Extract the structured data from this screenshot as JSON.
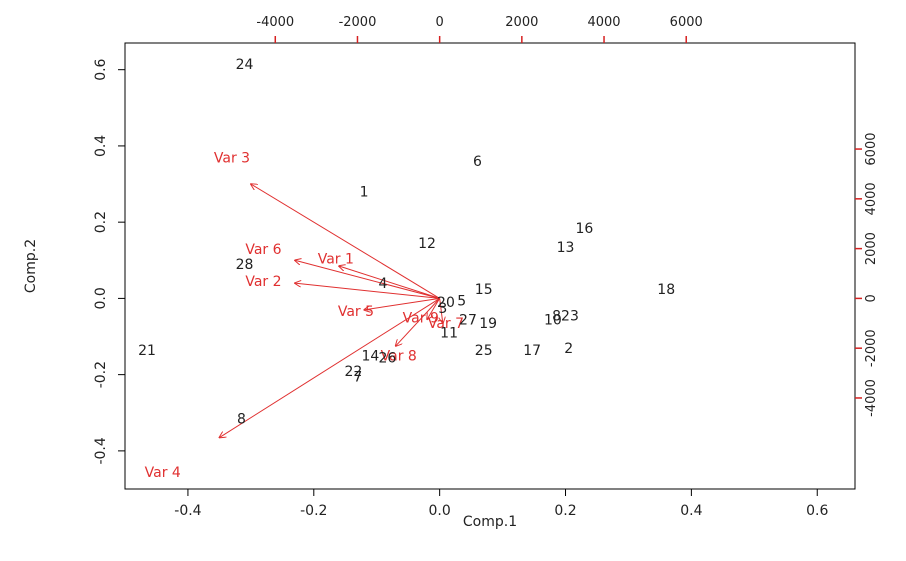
{
  "chart_data": {
    "type": "scatter",
    "subtype": "biplot",
    "xlabel": "Comp.1",
    "ylabel": "Comp.2",
    "xlim": [
      -0.5,
      0.66
    ],
    "ylim": [
      -0.5,
      0.67
    ],
    "xticks": [
      "-0.4",
      "-0.2",
      "0.0",
      "0.2",
      "0.4",
      "0.6"
    ],
    "xtick_values": [
      -0.4,
      -0.2,
      0.0,
      0.2,
      0.4,
      0.6
    ],
    "yticks": [
      "-0.4",
      "-0.2",
      "0.0",
      "0.2",
      "0.4",
      "0.6"
    ],
    "ytick_values": [
      -0.4,
      -0.2,
      0.0,
      0.2,
      0.4,
      0.6
    ],
    "top_xticks": [
      "-4000",
      "-2000",
      "0",
      "2000",
      "4000",
      "6000"
    ],
    "top_xtick_values": [
      -4000,
      -2000,
      0,
      2000,
      4000,
      6000
    ],
    "right_yticks": [
      "-4000",
      "-2000",
      "0",
      "2000",
      "4000",
      "6000"
    ],
    "right_ytick_values": [
      -4000,
      -2000,
      0,
      2000,
      4000,
      6000
    ],
    "loading_scale": 6.53e-05,
    "observations": [
      {
        "label": "24",
        "x": -0.31,
        "y": 0.615
      },
      {
        "label": "6",
        "x": 0.06,
        "y": 0.36
      },
      {
        "label": "1",
        "x": -0.12,
        "y": 0.28
      },
      {
        "label": "16",
        "x": 0.23,
        "y": 0.185
      },
      {
        "label": "12",
        "x": -0.02,
        "y": 0.145
      },
      {
        "label": "13",
        "x": 0.2,
        "y": 0.135
      },
      {
        "label": "28",
        "x": -0.31,
        "y": 0.09
      },
      {
        "label": "4",
        "x": -0.09,
        "y": 0.04
      },
      {
        "label": "15",
        "x": 0.07,
        "y": 0.025
      },
      {
        "label": "18",
        "x": 0.36,
        "y": 0.025
      },
      {
        "label": "5",
        "x": 0.035,
        "y": -0.005
      },
      {
        "label": "20",
        "x": 0.01,
        "y": -0.01
      },
      {
        "label": "3",
        "x": 0.005,
        "y": -0.025
      },
      {
        "label": "823",
        "x": 0.2,
        "y": -0.045
      },
      {
        "label": "10",
        "x": 0.18,
        "y": -0.055
      },
      {
        "label": "27",
        "x": 0.045,
        "y": -0.055
      },
      {
        "label": "19",
        "x": 0.077,
        "y": -0.065
      },
      {
        "label": "11",
        "x": 0.015,
        "y": -0.09
      },
      {
        "label": "21",
        "x": -0.465,
        "y": -0.135
      },
      {
        "label": "25",
        "x": 0.07,
        "y": -0.135
      },
      {
        "label": "17",
        "x": 0.147,
        "y": -0.135
      },
      {
        "label": "2",
        "x": 0.205,
        "y": -0.13
      },
      {
        "label": "14",
        "x": -0.11,
        "y": -0.15
      },
      {
        "label": "26",
        "x": -0.083,
        "y": -0.155
      },
      {
        "label": "22",
        "x": -0.137,
        "y": -0.19
      },
      {
        "label": "7",
        "x": -0.13,
        "y": -0.205
      },
      {
        "label": "8",
        "x": -0.315,
        "y": -0.315
      }
    ],
    "variables": [
      {
        "name": "Var 3",
        "x": -0.3,
        "y": 0.3,
        "label_x": -0.33,
        "label_y": 0.37
      },
      {
        "name": "Var 6",
        "x": -0.23,
        "y": 0.1,
        "label_x": -0.28,
        "label_y": 0.13
      },
      {
        "name": "Var 1",
        "x": -0.16,
        "y": 0.085,
        "label_x": -0.165,
        "label_y": 0.105
      },
      {
        "name": "Var 2",
        "x": -0.23,
        "y": 0.04,
        "label_x": -0.28,
        "label_y": 0.045
      },
      {
        "name": "Var 5",
        "x": -0.12,
        "y": -0.03,
        "label_x": -0.133,
        "label_y": -0.033
      },
      {
        "name": "Var 9",
        "x": -0.02,
        "y": -0.055,
        "label_x": -0.03,
        "label_y": -0.05
      },
      {
        "name": "Var 7",
        "x": 0.005,
        "y": -0.065,
        "label_x": 0.01,
        "label_y": -0.065
      },
      {
        "name": "Var 8",
        "x": -0.07,
        "y": -0.125,
        "label_x": -0.065,
        "label_y": -0.15
      },
      {
        "name": "Var 4",
        "x": -0.35,
        "y": -0.365,
        "label_x": -0.44,
        "label_y": -0.455
      }
    ],
    "grid": false,
    "colors": {
      "observations": "#222222",
      "variables": "#e03030",
      "arrows": "#e03030",
      "frame": "#000000",
      "secondary_axis": "#d62020"
    }
  }
}
